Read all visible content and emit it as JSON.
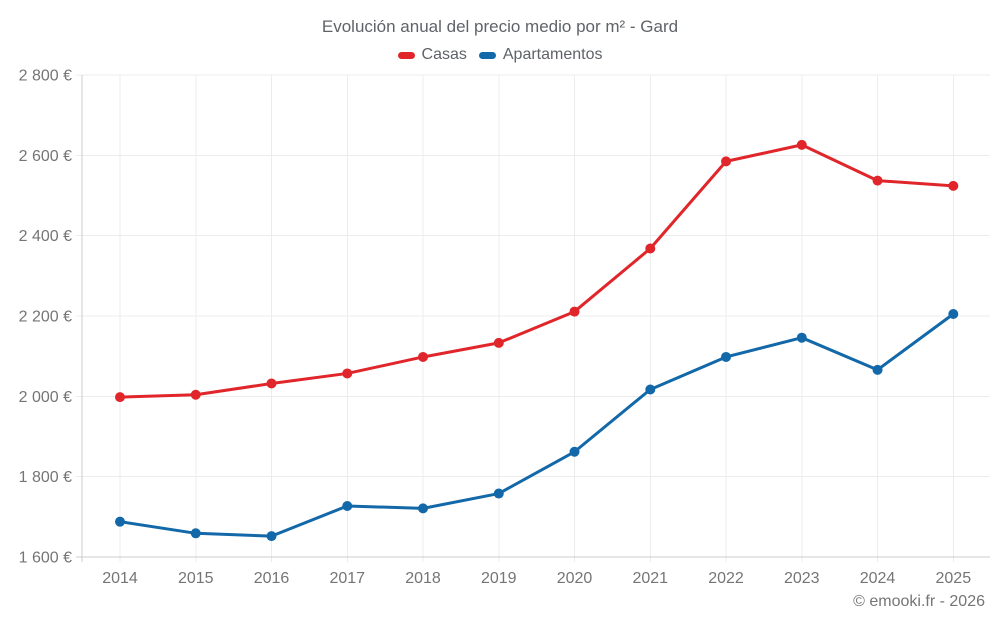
{
  "chart": {
    "title": "Evolución anual del precio medio por m² - Gard",
    "footer": "© emooki.fr - 2026"
  },
  "chart_data": {
    "type": "line",
    "title": "Evolución anual del precio medio por m² - Gard",
    "categories": [
      "2014",
      "2015",
      "2016",
      "2017",
      "2018",
      "2019",
      "2020",
      "2021",
      "2022",
      "2023",
      "2024",
      "2025"
    ],
    "series": [
      {
        "name": "Casas",
        "color": "#e0262a",
        "values": [
          1998,
          2004,
          2032,
          2057,
          2098,
          2133,
          2211,
          2368,
          2585,
          2626,
          2537,
          2524
        ]
      },
      {
        "name": "Apartamentos",
        "color": "#1268a8",
        "values": [
          1688,
          1659,
          1652,
          1727,
          1721,
          1758,
          1862,
          2017,
          2098,
          2146,
          2066,
          2205
        ]
      }
    ],
    "xlabel": "",
    "ylabel": "",
    "ylim": [
      1600,
      2800
    ],
    "ytick_step": 200,
    "ytick_labels": [
      "1 600 €",
      "1 800 €",
      "2 000 €",
      "2 200 €",
      "2 400 €",
      "2 600 €",
      "2 800 €"
    ],
    "grid": true,
    "legend_position": "top",
    "colors": {
      "grid": "#ececec",
      "axis": "#cccccc",
      "tick_text": "#757575",
      "title_text": "#5f6368"
    }
  }
}
